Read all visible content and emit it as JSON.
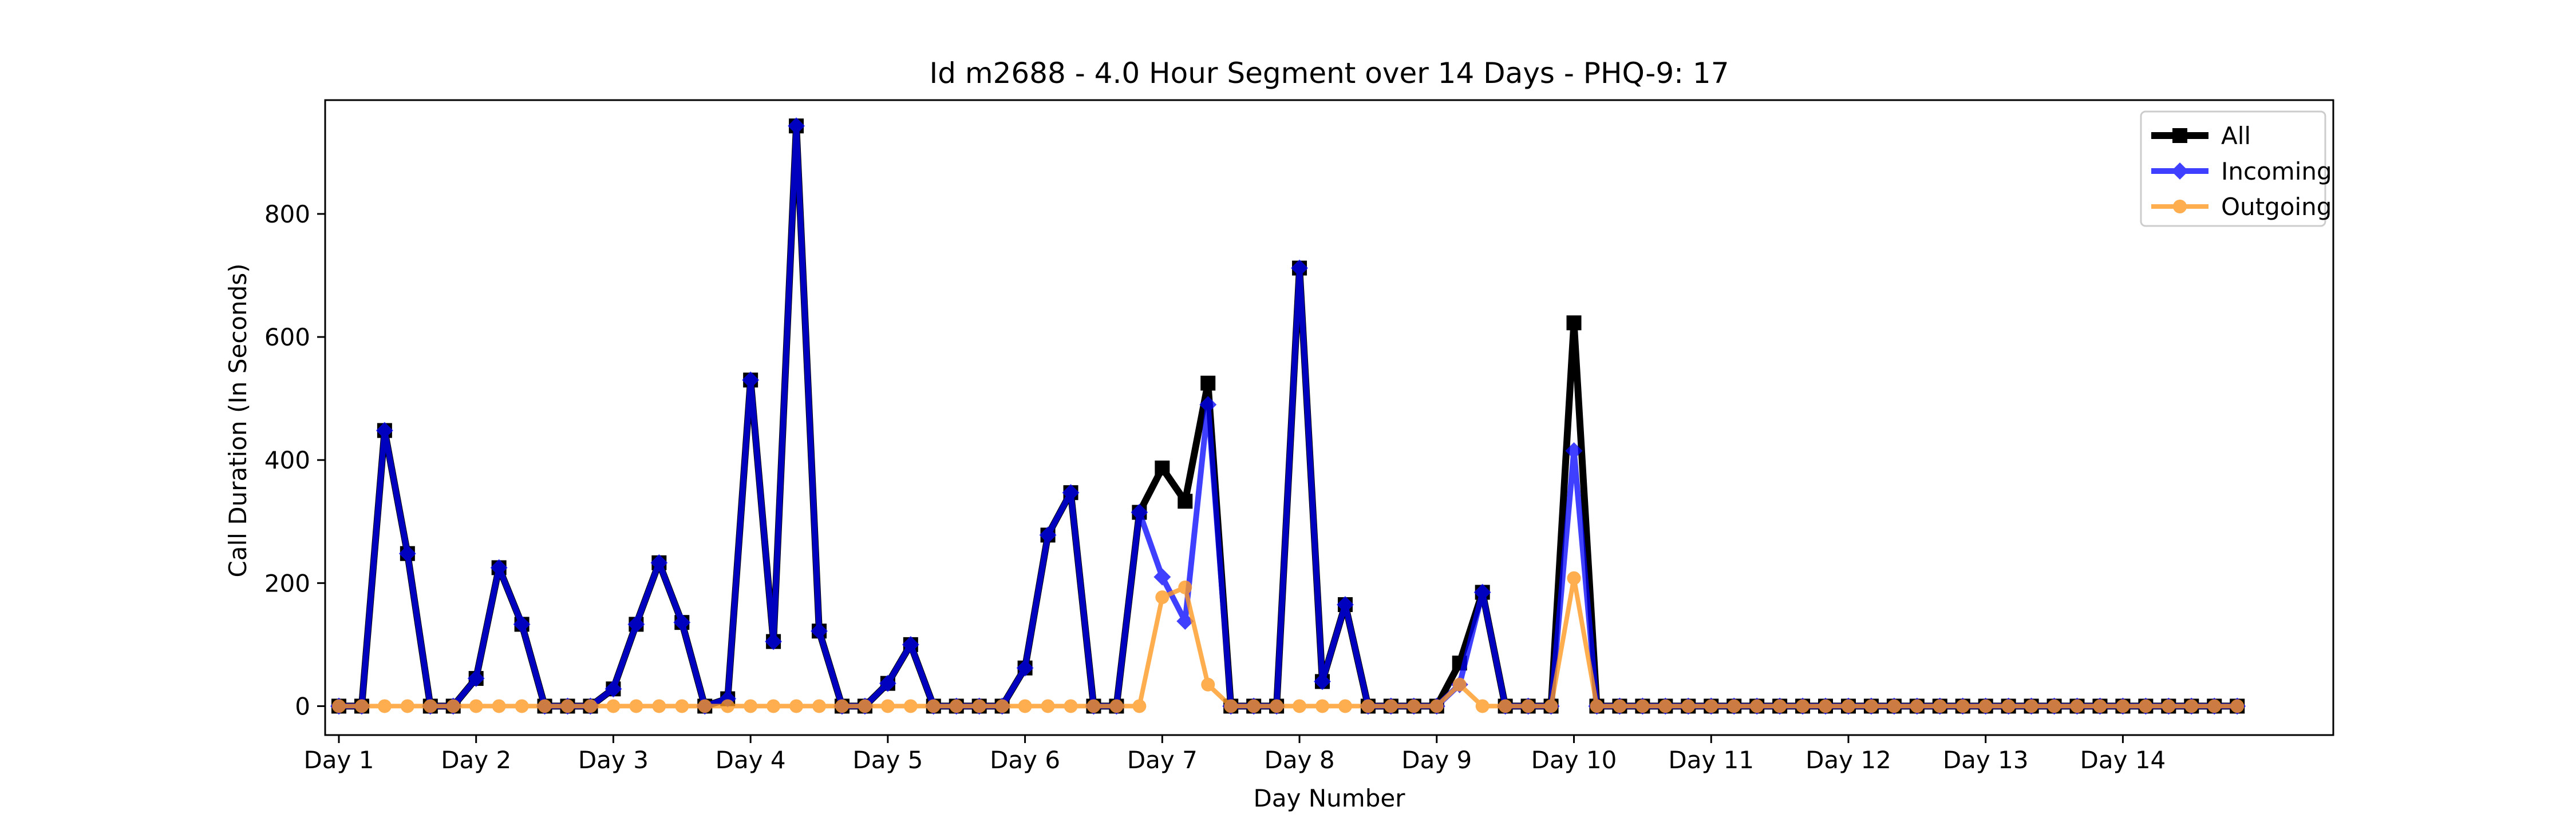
{
  "chart_data": {
    "type": "line",
    "title": "Id m2688 - 4.0 Hour Segment over 14 Days - PHQ-9: 17",
    "xlabel": "Day Number",
    "ylabel": "Call Duration (In Seconds)",
    "xlim": [
      -0.6,
      87.2
    ],
    "ylim": [
      -47,
      985
    ],
    "yticks": [
      0,
      200,
      400,
      600,
      800
    ],
    "xtick_positions": [
      0,
      6,
      12,
      18,
      24,
      30,
      36,
      42,
      48,
      54,
      60,
      66,
      72,
      78
    ],
    "xtick_labels": [
      "Day 1",
      "Day 2",
      "Day 3",
      "Day 4",
      "Day 5",
      "Day 6",
      "Day 7",
      "Day 8",
      "Day 9",
      "Day 10",
      "Day 11",
      "Day 12",
      "Day 13",
      "Day 14"
    ],
    "grid": false,
    "legend_position": "top-right",
    "series": [
      {
        "name": "All",
        "color": "#000000",
        "marker": "square",
        "values": [
          0,
          0,
          448,
          248,
          0,
          0,
          45,
          225,
          133,
          0,
          0,
          0,
          28,
          133,
          233,
          136,
          0,
          12,
          530,
          105,
          943,
          122,
          0,
          0,
          37,
          100,
          0,
          0,
          0,
          0,
          62,
          278,
          347,
          0,
          0,
          315,
          387,
          333,
          525,
          0,
          0,
          0,
          712,
          40,
          165,
          0,
          0,
          0,
          0,
          70,
          185,
          0,
          0,
          0,
          623,
          0,
          0,
          0,
          0,
          0,
          0,
          0,
          0,
          0,
          0,
          0,
          0,
          0,
          0,
          0,
          0,
          0,
          0,
          0,
          0,
          0,
          0,
          0,
          0,
          0,
          0,
          0,
          0,
          0
        ]
      },
      {
        "name": "Incoming",
        "color": "#0000ff",
        "marker": "diamond",
        "values": [
          0,
          0,
          448,
          248,
          0,
          0,
          45,
          225,
          133,
          0,
          0,
          0,
          28,
          133,
          233,
          136,
          0,
          12,
          530,
          105,
          943,
          122,
          0,
          0,
          37,
          100,
          0,
          0,
          0,
          0,
          62,
          278,
          347,
          0,
          0,
          315,
          210,
          138,
          490,
          0,
          0,
          0,
          712,
          40,
          165,
          0,
          0,
          0,
          0,
          35,
          185,
          0,
          0,
          0,
          415,
          0,
          0,
          0,
          0,
          0,
          0,
          0,
          0,
          0,
          0,
          0,
          0,
          0,
          0,
          0,
          0,
          0,
          0,
          0,
          0,
          0,
          0,
          0,
          0,
          0,
          0,
          0,
          0,
          0
        ]
      },
      {
        "name": "Outgoing",
        "color": "#ff9a24",
        "marker": "circle",
        "values": [
          0,
          0,
          0,
          0,
          0,
          0,
          0,
          0,
          0,
          0,
          0,
          0,
          0,
          0,
          0,
          0,
          0,
          0,
          0,
          0,
          0,
          0,
          0,
          0,
          0,
          0,
          0,
          0,
          0,
          0,
          0,
          0,
          0,
          0,
          0,
          0,
          177,
          193,
          35,
          0,
          0,
          0,
          0,
          0,
          0,
          0,
          0,
          0,
          0,
          35,
          0,
          0,
          0,
          0,
          208,
          0,
          0,
          0,
          0,
          0,
          0,
          0,
          0,
          0,
          0,
          0,
          0,
          0,
          0,
          0,
          0,
          0,
          0,
          0,
          0,
          0,
          0,
          0,
          0,
          0,
          0,
          0,
          0,
          0
        ]
      }
    ]
  }
}
